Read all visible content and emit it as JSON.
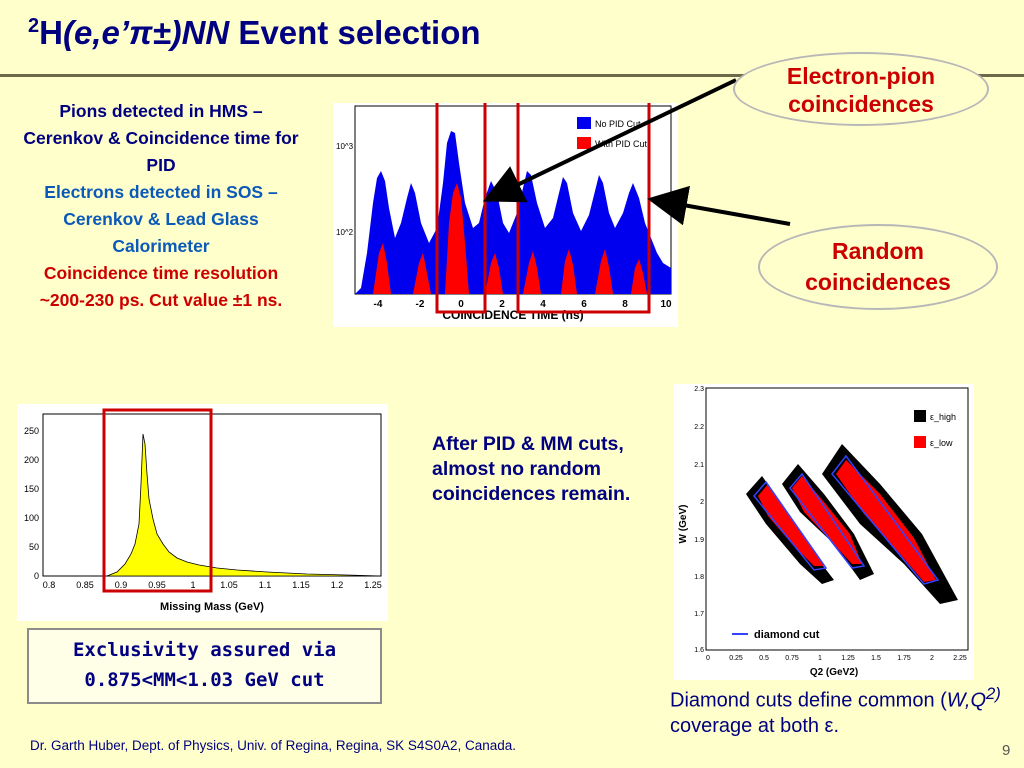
{
  "title": {
    "sup": "2",
    "h": "H",
    "reaction": "(e,e’π±)NN",
    "rest": " Event selection"
  },
  "left_text": {
    "pid": "Pions detected in HMS – Cerenkov & Coincidence time for PID",
    "electrons": "Electrons detected in SOS –Cerenkov & Lead Glass Calorimeter",
    "resolution": "Coincidence time resolution ~200-230 ps. Cut value ±1 ns."
  },
  "ovals": {
    "electron_pion": "Electron-pion coincidences",
    "random": "Random coincidences"
  },
  "after_text": "After PID & MM cuts, almost no random coincidences remain.",
  "exclusivity": {
    "line1": "Exclusivity assured via",
    "line2": "0.875<MM<1.03 GeV cut"
  },
  "diamond_caption": {
    "prefix": "Diamond cuts define common (",
    "vars": "W,Q",
    "sup": "2)",
    "suffix": " coverage at both ε."
  },
  "footer": "Dr. Garth Huber, Dept. of Physics, Univ. of Regina, Regina, SK S4S0A2, Canada.",
  "page_number": "9",
  "colors": {
    "navy": "#000080",
    "red": "#cc0000",
    "blue_text": "#0b59b8",
    "background": "#ffffcc"
  },
  "coincidence_plot": {
    "xlabel": "COINCIDENCE TIME (ns)",
    "xticks": [
      "-4",
      "-2",
      "0",
      "2",
      "4",
      "6",
      "8",
      "10"
    ],
    "yticks": [
      "10^3",
      "10^2"
    ],
    "legend": [
      "No PID Cut",
      "With PID Cut"
    ],
    "series_colors": [
      "#0000ee",
      "#ff0000"
    ]
  },
  "mm_plot": {
    "xlabel": "Missing Mass (GeV)",
    "xticks": [
      "0.8",
      "0.85",
      "0.9",
      "0.95",
      "1",
      "1.05",
      "1.1",
      "1.15",
      "1.2",
      "1.25"
    ],
    "yticks": [
      "250",
      "200",
      "150",
      "100",
      "50",
      "0"
    ],
    "fill_color": "#ffff00"
  },
  "diamond_plot": {
    "xlabel": "Q2 (GeV2)",
    "ylabel": "W (GeV)",
    "xticks": [
      "0",
      "0.25",
      "0.5",
      "0.75",
      "1",
      "1.25",
      "1.5",
      "1.75",
      "2",
      "2.25"
    ],
    "yticks": [
      "2.3",
      "2.2",
      "2.1",
      "2",
      "1.9",
      "1.8",
      "1.7",
      "1.6"
    ],
    "legend": [
      "ε_high",
      "ε_low"
    ],
    "cut_label": "diamond cut"
  }
}
